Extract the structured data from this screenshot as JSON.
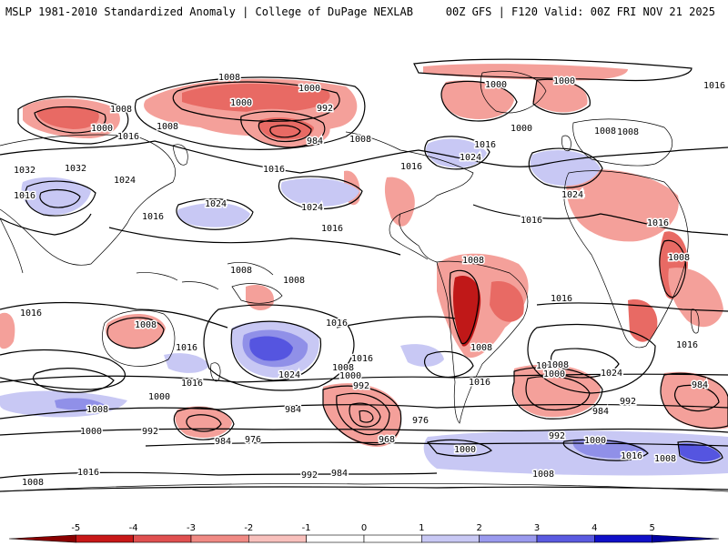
{
  "header": {
    "left": "MSLP 1981-2010 Standardized Anomaly | College of DuPage NEXLAB",
    "right": "00Z GFS | F120 Valid: 00Z FRI NOV 21 2025"
  },
  "colors": {
    "ocean": "#ffffff",
    "land_border": "#000000",
    "contour": "#000000",
    "neg_light": "#f4a09a",
    "neg_mid": "#e86a64",
    "neg_dark": "#c01818",
    "pos_light": "#c8c8f4",
    "pos_mid": "#9090e8",
    "pos_dark": "#3030d8"
  },
  "colorbar": {
    "ticks": [
      "-5",
      "-4",
      "-3",
      "-2",
      "-1",
      "0",
      "1",
      "2",
      "3",
      "4",
      "5"
    ],
    "colors": [
      "#8a0000",
      "#c81818",
      "#e05050",
      "#f08a84",
      "#f8c0bc",
      "#ffffff",
      "#ffffff",
      "#c8c8f4",
      "#9a9aee",
      "#5a5ae0",
      "#1010c8",
      "#0000a0"
    ]
  },
  "contour_labels": [
    {
      "text": "1008"
    },
    {
      "text": "1000"
    },
    {
      "text": "1008"
    },
    {
      "text": "1000"
    },
    {
      "text": "992"
    },
    {
      "text": "984"
    },
    {
      "text": "1008"
    },
    {
      "text": "1000"
    },
    {
      "text": "1000"
    },
    {
      "text": "1016"
    },
    {
      "text": "1008"
    },
    {
      "text": "1000"
    },
    {
      "text": "1016"
    },
    {
      "text": "1008"
    },
    {
      "text": "1000"
    },
    {
      "text": "1016"
    },
    {
      "text": "1008"
    },
    {
      "text": "1016"
    },
    {
      "text": "1016"
    },
    {
      "text": "1024"
    },
    {
      "text": "1032"
    },
    {
      "text": "1032"
    },
    {
      "text": "1024"
    },
    {
      "text": "1016"
    },
    {
      "text": "1024"
    },
    {
      "text": "1024"
    },
    {
      "text": "1016"
    },
    {
      "text": "1024"
    },
    {
      "text": "1016"
    },
    {
      "text": "1016"
    },
    {
      "text": "1024"
    },
    {
      "text": "1016"
    },
    {
      "text": "1008"
    },
    {
      "text": "1008"
    },
    {
      "text": "1008"
    },
    {
      "text": "1008"
    },
    {
      "text": "1016"
    },
    {
      "text": "1008"
    },
    {
      "text": "1016"
    },
    {
      "text": "1008"
    },
    {
      "text": "1016"
    },
    {
      "text": "1016"
    },
    {
      "text": "1016"
    },
    {
      "text": "1016"
    },
    {
      "text": "1024"
    },
    {
      "text": "1008"
    },
    {
      "text": "1008"
    },
    {
      "text": "1000"
    },
    {
      "text": "1000"
    },
    {
      "text": "1016"
    },
    {
      "text": "1016"
    },
    {
      "text": "1024"
    },
    {
      "text": "1008"
    },
    {
      "text": "992"
    },
    {
      "text": "1000"
    },
    {
      "text": "1000"
    },
    {
      "text": "992"
    },
    {
      "text": "984"
    },
    {
      "text": "976"
    },
    {
      "text": "968"
    },
    {
      "text": "1008"
    },
    {
      "text": "984"
    },
    {
      "text": "992"
    },
    {
      "text": "984"
    },
    {
      "text": "1016"
    },
    {
      "text": "1008"
    },
    {
      "text": "984"
    },
    {
      "text": "976"
    },
    {
      "text": "992"
    },
    {
      "text": "984"
    },
    {
      "text": "1000"
    },
    {
      "text": "1000"
    },
    {
      "text": "1016"
    },
    {
      "text": "1008"
    },
    {
      "text": "992"
    },
    {
      "text": "1008"
    }
  ]
}
